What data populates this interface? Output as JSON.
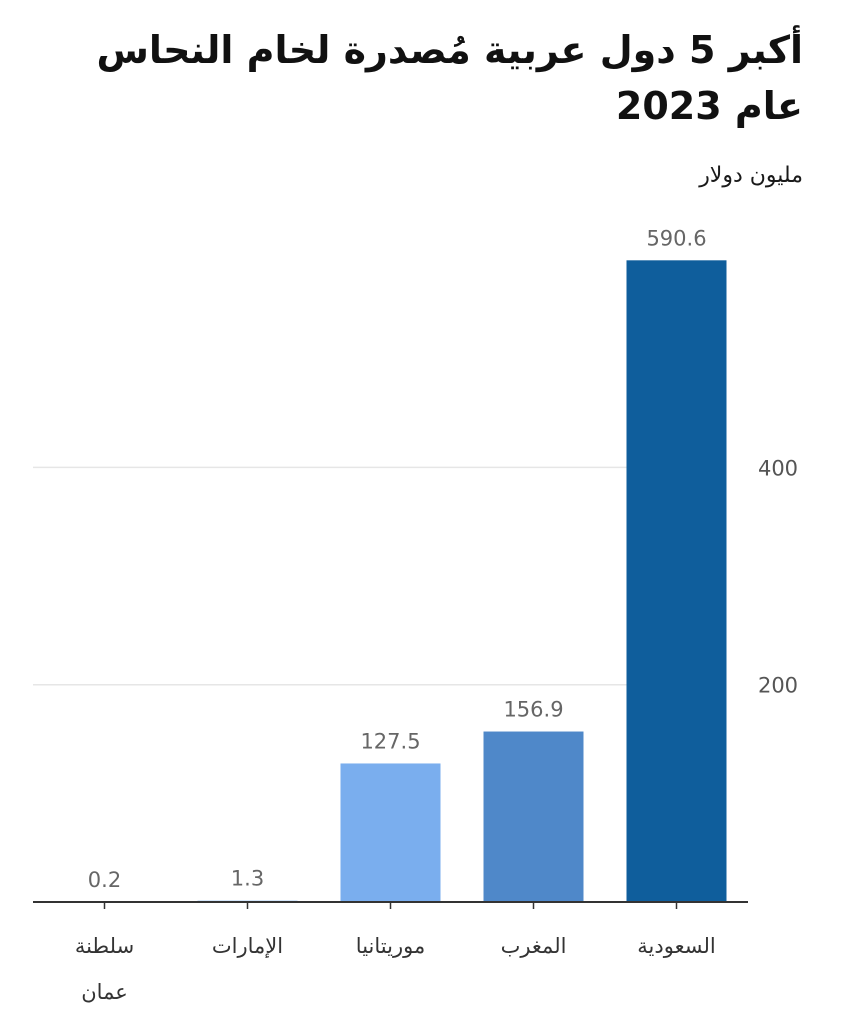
{
  "title": "أكبر 5 دول عربية مُصدرة لخام النحاس عام 2023",
  "unit_label": "مليون دولار",
  "colors": {
    "bars": [
      "#0f5e9c",
      "#4f88c9",
      "#7aaeee",
      "#9ec5f2",
      "#9ec5f2"
    ],
    "value_label": "#666666",
    "tick_label": "#555555",
    "gridline": "#e6e6e6",
    "axis": "#333333",
    "category_label": "#333333"
  },
  "chart_data": {
    "type": "bar",
    "title": "أكبر 5 دول عربية مُصدرة لخام النحاس عام 2023",
    "ylabel": "مليون دولار",
    "xlabel": "",
    "categories": [
      [
        "السعودية"
      ],
      [
        "المغرب"
      ],
      [
        "موريتانيا"
      ],
      [
        "الإمارات"
      ],
      [
        "سلطنة",
        "عمان"
      ]
    ],
    "values": [
      590.6,
      156.9,
      127.5,
      1.3,
      0.2
    ],
    "value_labels": [
      "590.6",
      "156.9",
      "127.5",
      "1.3",
      "0.2"
    ],
    "yticks": [
      200,
      400
    ],
    "ylim": [
      0,
      600
    ],
    "grid": true,
    "y_axis_side": "right",
    "category_order": "right-to-left"
  }
}
